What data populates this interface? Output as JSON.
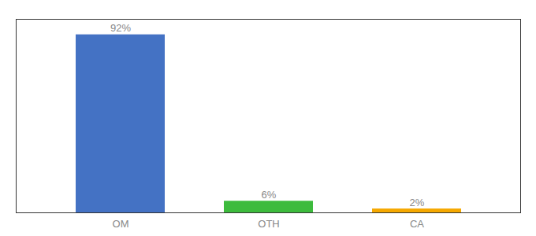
{
  "chart_data": {
    "type": "bar",
    "categories": [
      "OM",
      "OTH",
      "CA"
    ],
    "values": [
      92,
      6,
      2
    ],
    "value_labels": [
      "92%",
      "6%",
      "2%"
    ],
    "colors": [
      "#4472c4",
      "#3dbb3d",
      "#f5a800"
    ],
    "ylim": [
      0,
      100
    ],
    "data_labels": true,
    "tick_labels": "x"
  }
}
